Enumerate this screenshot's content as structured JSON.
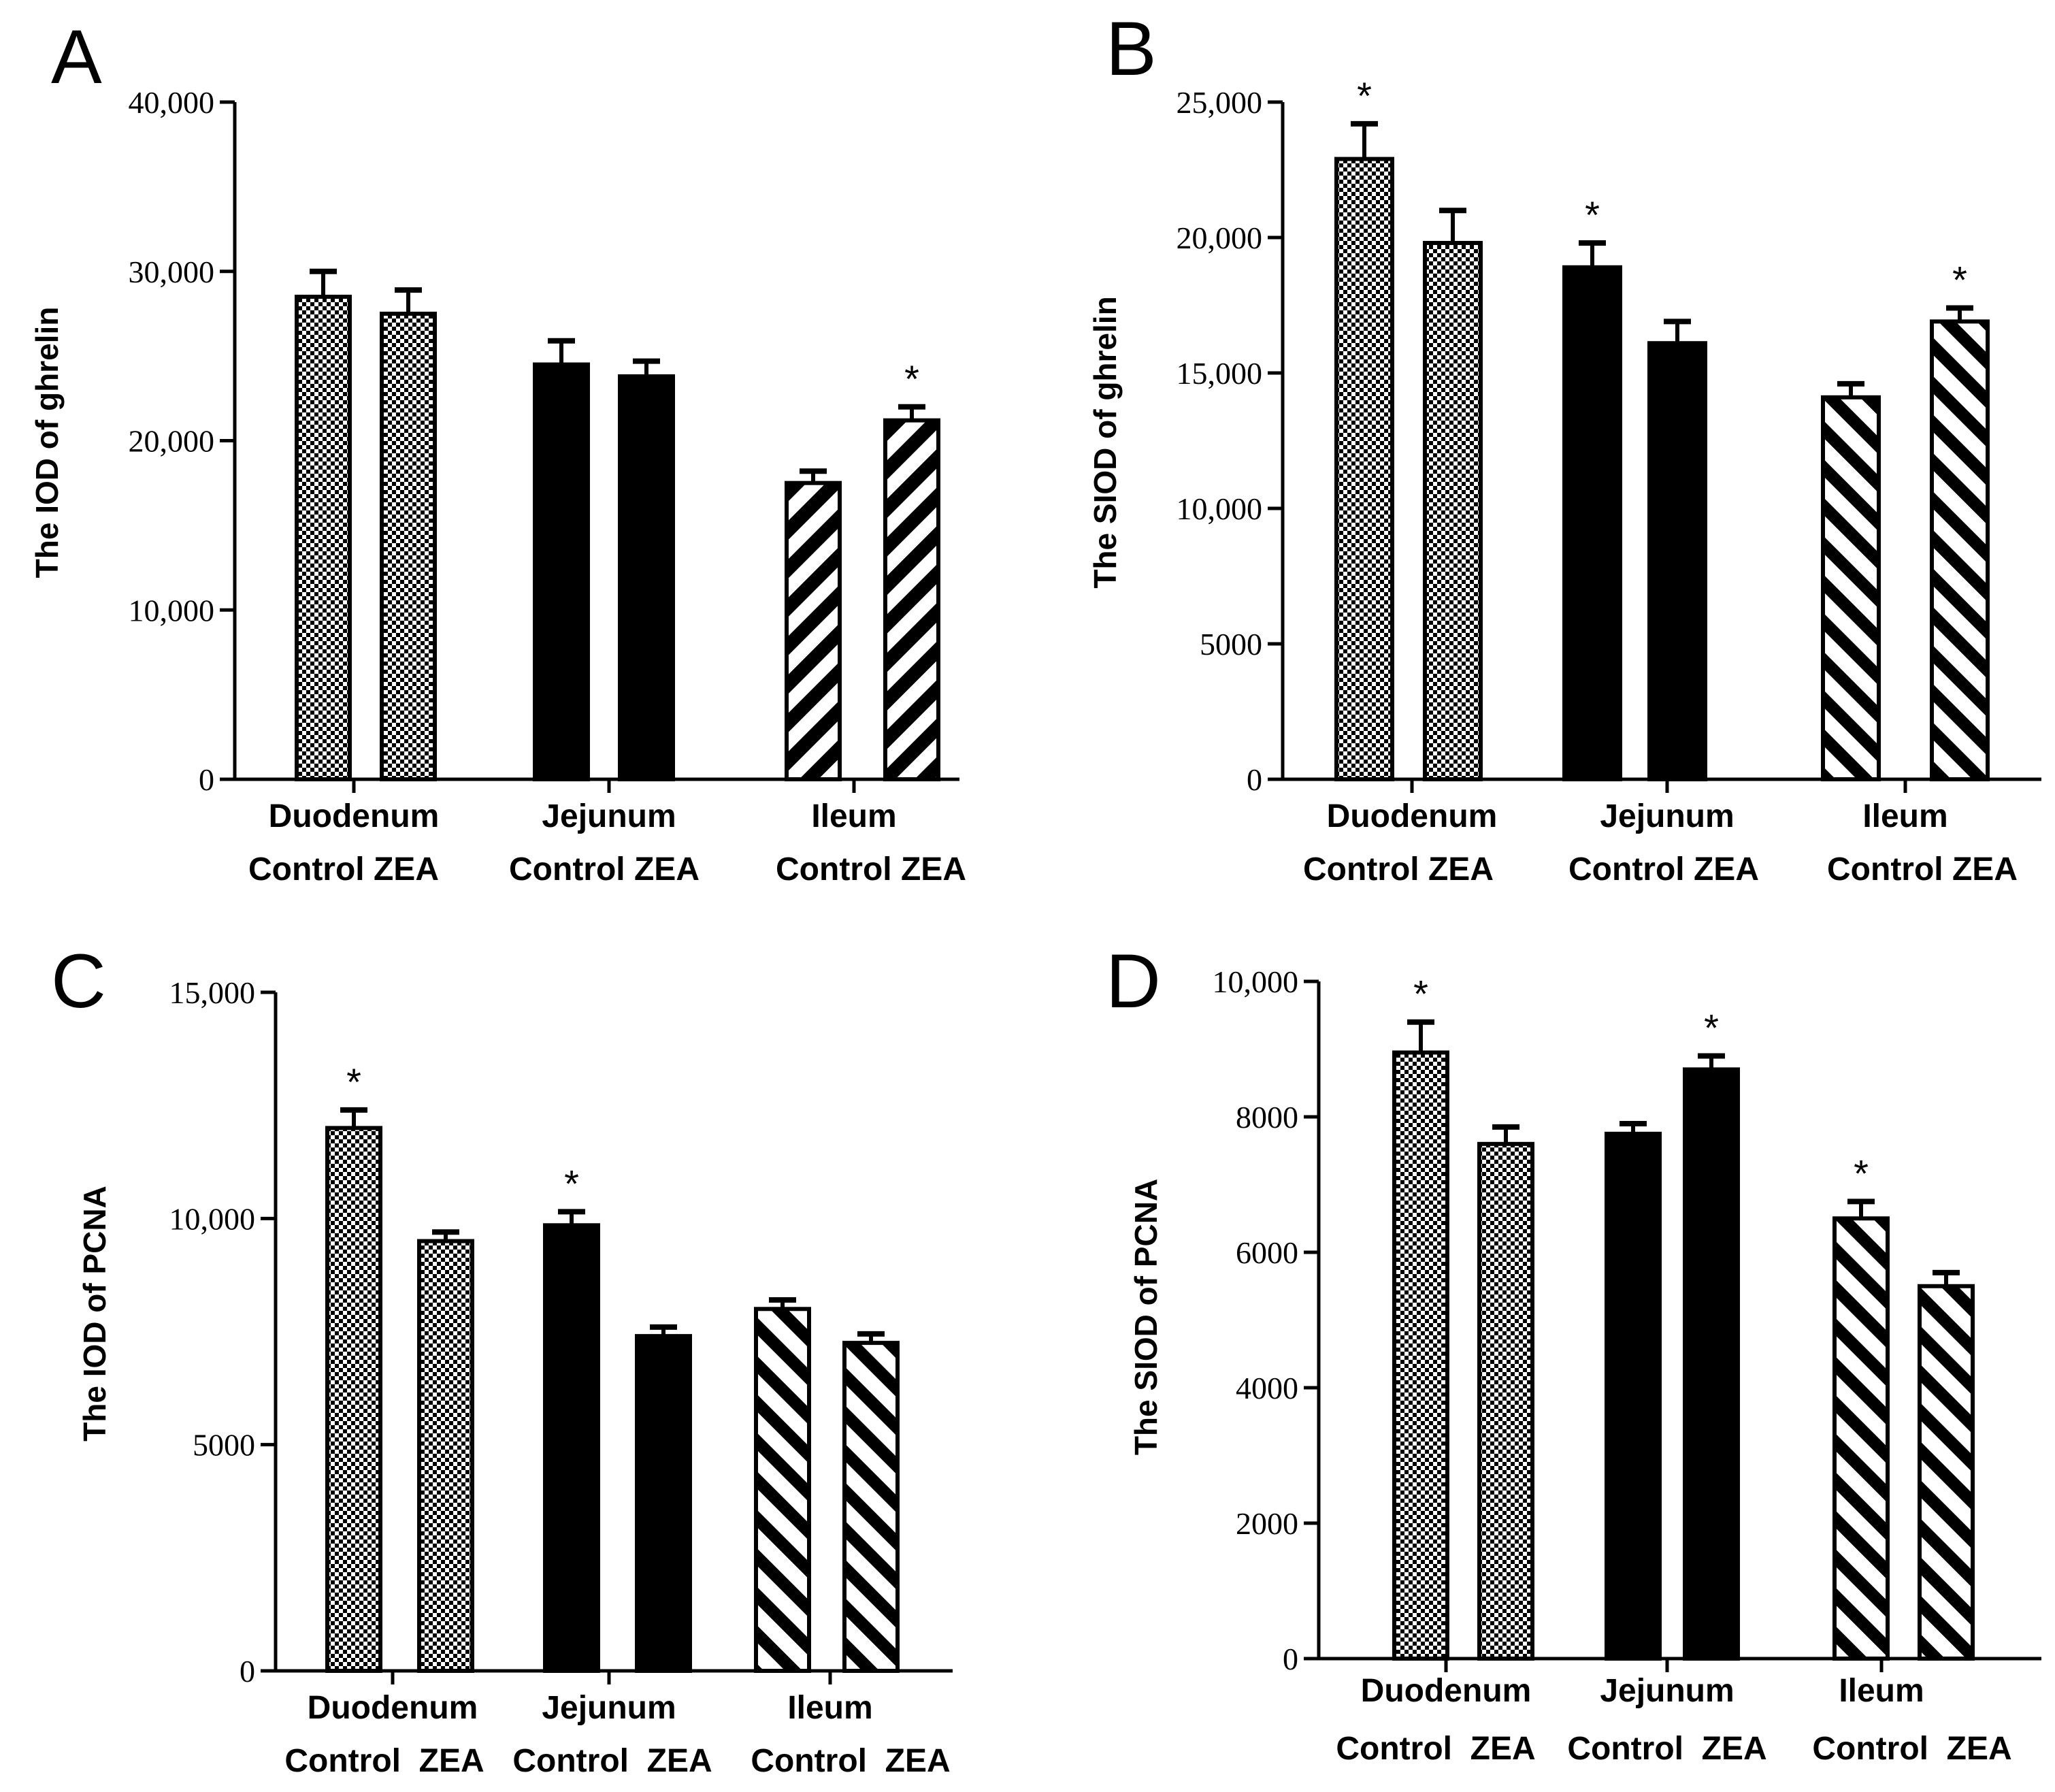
{
  "colors": {
    "ink": "#000000",
    "background": "#ffffff"
  },
  "chart_data": [
    {
      "type": "bar",
      "panel": "A",
      "ylabel": "The IOD of ghrelin",
      "ylim": [
        0,
        40000
      ],
      "yticks": [
        0,
        10000,
        20000,
        30000,
        40000
      ],
      "ytick_labels": [
        "0",
        "10,000",
        "20,000",
        "30,000",
        "40,000"
      ],
      "groups": [
        "Duodenum",
        "Jejunum",
        "Ileum"
      ],
      "group_patterns": [
        "checker",
        "solid",
        "hatch"
      ],
      "subcategories": [
        "Control",
        "ZEA"
      ],
      "sub_label_lines": [
        "Control ZEA",
        "Control ZEA",
        "Control ZEA"
      ],
      "values": [
        [
          28500,
          27500
        ],
        [
          24500,
          23800
        ],
        [
          17500,
          21200
        ]
      ],
      "errors": [
        [
          1500,
          1400
        ],
        [
          1400,
          900
        ],
        [
          700,
          800
        ]
      ],
      "significant": [
        [
          false,
          false
        ],
        [
          false,
          false
        ],
        [
          false,
          true
        ]
      ]
    },
    {
      "type": "bar",
      "panel": "B",
      "ylabel": "The SIOD of ghrelin",
      "ylim": [
        0,
        25000
      ],
      "yticks": [
        0,
        5000,
        10000,
        15000,
        20000,
        25000
      ],
      "ytick_labels": [
        "0",
        "5000",
        "10,000",
        "15,000",
        "20,000",
        "25,000"
      ],
      "groups": [
        "Duodenum",
        "Jejunum",
        "Ileum"
      ],
      "group_patterns": [
        "checker",
        "checker-solid-bars",
        "hatch-wide"
      ],
      "subcategories": [
        "Control",
        "ZEA"
      ],
      "sub_label_lines": [
        "Control ZEA",
        "Control ZEA",
        "Control ZEA"
      ],
      "values": [
        [
          22900,
          19800
        ],
        [
          18900,
          16100
        ],
        [
          14100,
          16900
        ]
      ],
      "errors": [
        [
          1300,
          1200
        ],
        [
          900,
          800
        ],
        [
          500,
          500
        ]
      ],
      "significant": [
        [
          true,
          false
        ],
        [
          true,
          false
        ],
        [
          false,
          true
        ]
      ]
    },
    {
      "type": "bar",
      "panel": "C",
      "ylabel": "The IOD  of PCNA",
      "ylim": [
        0,
        15000
      ],
      "yticks": [
        0,
        5000,
        10000,
        15000
      ],
      "ytick_labels": [
        "0",
        "5000",
        "10,000",
        "15,000"
      ],
      "groups": [
        "Duodenum",
        "Jejunum",
        "Ileum"
      ],
      "group_patterns": [
        "checker",
        "solid",
        "hatch-wide"
      ],
      "subcategories": [
        "Control",
        "ZEA"
      ],
      "sub_label_lines": [
        "Control  ZEA",
        "Control  ZEA",
        "Control  ZEA"
      ],
      "values": [
        [
          12000,
          9500
        ],
        [
          9850,
          7400
        ],
        [
          8000,
          7250
        ]
      ],
      "errors": [
        [
          400,
          200
        ],
        [
          300,
          200
        ],
        [
          200,
          200
        ]
      ],
      "significant": [
        [
          true,
          false
        ],
        [
          true,
          false
        ],
        [
          false,
          false
        ]
      ]
    },
    {
      "type": "bar",
      "panel": "D",
      "ylabel": "The SIOD  of PCNA",
      "ylim": [
        0,
        10000
      ],
      "yticks": [
        0,
        2000,
        4000,
        6000,
        8000,
        10000
      ],
      "ytick_labels": [
        "0",
        "2000",
        "4000",
        "6000",
        "8000",
        "10,000"
      ],
      "groups": [
        "Duodenum",
        "Jejunum",
        "Ileum"
      ],
      "group_patterns": [
        "checker",
        "solid",
        "hatch-wide"
      ],
      "subcategories": [
        "Control",
        "ZEA"
      ],
      "sub_label_lines": [
        "Control  ZEA",
        "Control  ZEA",
        "Control  ZEA"
      ],
      "values": [
        [
          8950,
          7600
        ],
        [
          7750,
          8700
        ],
        [
          6500,
          5500
        ]
      ],
      "errors": [
        [
          450,
          250
        ],
        [
          150,
          200
        ],
        [
          250,
          200
        ]
      ],
      "significant": [
        [
          true,
          false
        ],
        [
          false,
          true
        ],
        [
          true,
          false
        ]
      ]
    }
  ],
  "significance_marker": "*"
}
